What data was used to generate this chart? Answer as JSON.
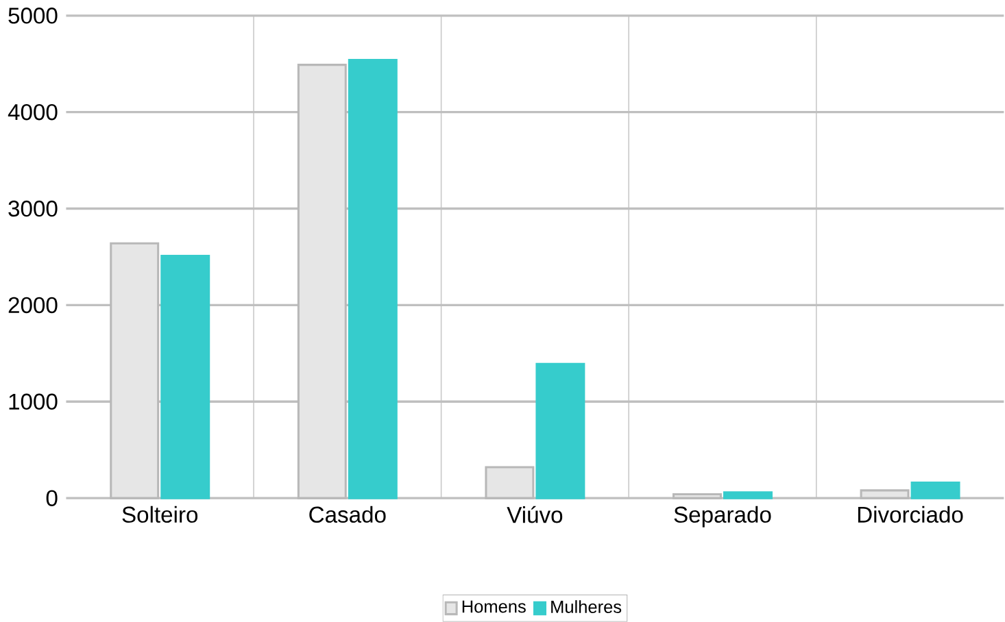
{
  "chart_data": {
    "type": "bar",
    "categories": [
      "Solteiro",
      "Casado",
      "Viúvo",
      "Separado",
      "Divorciado"
    ],
    "series": [
      {
        "name": "Homens",
        "color": "#e6e6e6",
        "values": [
          2640,
          4490,
          320,
          40,
          80
        ]
      },
      {
        "name": "Mulheres",
        "color": "#36cccc",
        "values": [
          2510,
          4540,
          1390,
          60,
          160
        ]
      }
    ],
    "ylim": [
      0,
      5000
    ],
    "yticks": [
      0,
      1000,
      2000,
      3000,
      4000,
      5000
    ],
    "grid": true,
    "legend": "bottom"
  }
}
